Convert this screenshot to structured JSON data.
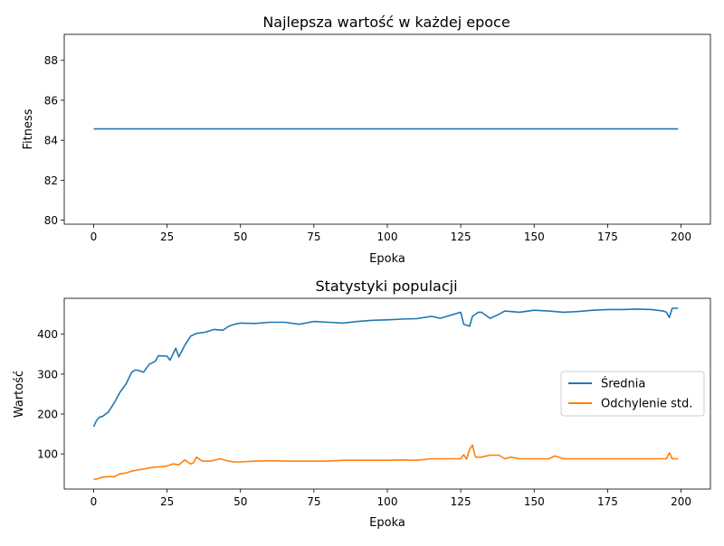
{
  "chart_data": [
    {
      "type": "line",
      "title": "Najlepsza wartość w każdej epoce",
      "xlabel": "Epoka",
      "ylabel": "Fitness",
      "xlim": [
        -10,
        210
      ],
      "ylim": [
        79.8,
        89.3
      ],
      "xticks": [
        0,
        25,
        50,
        75,
        100,
        125,
        150,
        175,
        200
      ],
      "yticks": [
        80,
        82,
        84,
        86,
        88
      ],
      "grid": false,
      "series": [
        {
          "color": "#1f77b4",
          "x": [
            0,
            199
          ],
          "y": [
            84.57,
            84.57
          ]
        }
      ]
    },
    {
      "type": "line",
      "title": "Statystyki populacji",
      "xlabel": "Epoka",
      "ylabel": "Wartość",
      "xlim": [
        -10,
        210
      ],
      "ylim": [
        12,
        490
      ],
      "xticks": [
        0,
        25,
        50,
        75,
        100,
        125,
        150,
        175,
        200
      ],
      "yticks": [
        100,
        200,
        300,
        400
      ],
      "grid": false,
      "legend": "center-right",
      "series": [
        {
          "name": "Średnia",
          "color": "#1f77b4",
          "x": [
            0,
            1,
            2,
            3,
            5,
            7,
            9,
            11,
            13,
            14,
            15,
            17,
            19,
            21,
            22,
            25,
            26,
            28,
            29,
            31,
            33,
            35,
            38,
            41,
            44,
            46,
            48,
            50,
            55,
            60,
            65,
            70,
            75,
            80,
            85,
            90,
            95,
            100,
            105,
            110,
            115,
            118,
            125,
            126,
            128,
            129,
            131,
            132,
            135,
            138,
            140,
            145,
            150,
            155,
            160,
            165,
            170,
            175,
            180,
            185,
            190,
            194,
            195,
            196,
            197,
            199
          ],
          "y": [
            168,
            184,
            192,
            194,
            205,
            228,
            255,
            275,
            305,
            310,
            310,
            305,
            325,
            332,
            346,
            345,
            335,
            365,
            343,
            372,
            395,
            402,
            405,
            412,
            410,
            420,
            425,
            428,
            427,
            430,
            430,
            425,
            432,
            430,
            428,
            432,
            435,
            436,
            438,
            439,
            445,
            440,
            455,
            425,
            420,
            445,
            455,
            455,
            440,
            450,
            458,
            455,
            460,
            458,
            455,
            457,
            460,
            462,
            462,
            463,
            462,
            458,
            455,
            442,
            465,
            465
          ]
        },
        {
          "name": "Odchylenie std.",
          "color": "#ff7f0e",
          "x": [
            0,
            1,
            3,
            5,
            7,
            9,
            11,
            13,
            15,
            17,
            19,
            21,
            23,
            25,
            27,
            29,
            31,
            33,
            34,
            35,
            37,
            40,
            43,
            46,
            48,
            50,
            55,
            60,
            65,
            70,
            75,
            80,
            85,
            90,
            95,
            100,
            105,
            110,
            115,
            120,
            123,
            125,
            126,
            127,
            128,
            129,
            130,
            132,
            135,
            138,
            140,
            142,
            145,
            150,
            155,
            157,
            160,
            165,
            170,
            175,
            180,
            185,
            190,
            194,
            195,
            196,
            197,
            199
          ],
          "y": [
            37,
            37,
            42,
            43,
            43,
            50,
            52,
            57,
            60,
            62,
            65,
            67,
            68,
            70,
            75,
            73,
            85,
            75,
            78,
            92,
            82,
            82,
            88,
            82,
            80,
            80,
            82,
            83,
            82,
            82,
            82,
            82,
            84,
            84,
            84,
            84,
            85,
            84,
            88,
            88,
            88,
            88,
            98,
            87,
            112,
            122,
            92,
            92,
            97,
            97,
            88,
            92,
            88,
            88,
            88,
            95,
            88,
            88,
            88,
            88,
            88,
            88,
            88,
            88,
            88,
            103,
            88,
            88
          ]
        }
      ]
    }
  ]
}
